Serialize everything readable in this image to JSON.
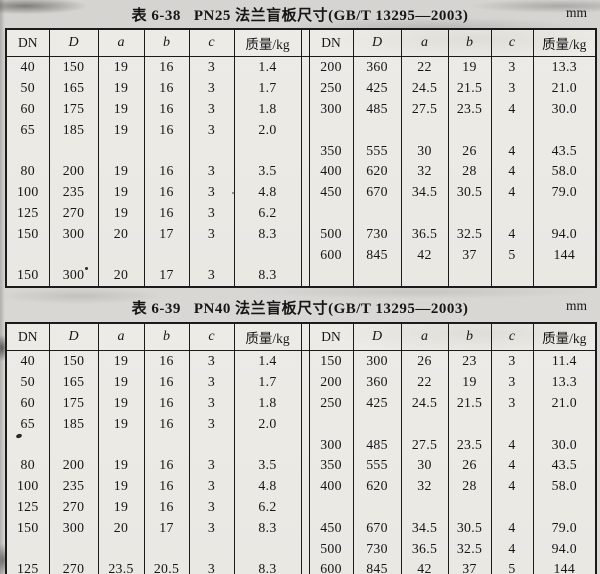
{
  "tables": [
    {
      "title_prefix": "表 6-38",
      "title": "PN25 法兰盲板尺寸(GB/T 13295—2003)",
      "unit": "mm",
      "columns": [
        "DN",
        "D",
        "a",
        "b",
        "c",
        "质量/kg",
        "DN",
        "D",
        "a",
        "b",
        "c",
        "质量/kg"
      ],
      "rows": [
        [
          "40",
          "150",
          "19",
          "16",
          "3",
          "1.4",
          "200",
          "360",
          "22",
          "19",
          "3",
          "13.3"
        ],
        [
          "50",
          "165",
          "19",
          "16",
          "3",
          "1.7",
          "250",
          "425",
          "24.5",
          "21.5",
          "3",
          "21.0"
        ],
        [
          "60",
          "175",
          "19",
          "16",
          "3",
          "1.8",
          "300",
          "485",
          "27.5",
          "23.5",
          "4",
          "30.0"
        ],
        [
          "65",
          "185",
          "19",
          "16",
          "3",
          "2.0",
          "",
          "",
          "",
          "",
          "",
          ""
        ],
        [
          "",
          "",
          "",
          "",
          "",
          "",
          "350",
          "555",
          "30",
          "26",
          "4",
          "43.5"
        ],
        [
          "80",
          "200",
          "19",
          "16",
          "3",
          "3.5",
          "400",
          "620",
          "32",
          "28",
          "4",
          "58.0"
        ],
        [
          "100",
          "235",
          "19",
          "16",
          "3",
          "4.8",
          "450",
          "670",
          "34.5",
          "30.5",
          "4",
          "79.0"
        ],
        [
          "125",
          "270",
          "19",
          "16",
          "3",
          "6.2",
          "",
          "",
          "",
          "",
          "",
          ""
        ],
        [
          "150",
          "300",
          "20",
          "17",
          "3",
          "8.3",
          "500",
          "730",
          "36.5",
          "32.5",
          "4",
          "94.0"
        ],
        [
          "",
          "",
          "",
          "",
          "",
          "",
          "600",
          "845",
          "42",
          "37",
          "5",
          "144"
        ],
        [
          "150",
          "300",
          "20",
          "17",
          "3",
          "8.3",
          "",
          "",
          "",
          "",
          "",
          ""
        ]
      ]
    },
    {
      "title_prefix": "表 6-39",
      "title": "PN40 法兰盲板尺寸(GB/T 13295—2003)",
      "unit": "mm",
      "columns": [
        "DN",
        "D",
        "a",
        "b",
        "c",
        "质量/kg",
        "DN",
        "D",
        "a",
        "b",
        "c",
        "质量/kg"
      ],
      "rows": [
        [
          "40",
          "150",
          "19",
          "16",
          "3",
          "1.4",
          "150",
          "300",
          "26",
          "23",
          "3",
          "11.4"
        ],
        [
          "50",
          "165",
          "19",
          "16",
          "3",
          "1.7",
          "200",
          "360",
          "22",
          "19",
          "3",
          "13.3"
        ],
        [
          "60",
          "175",
          "19",
          "16",
          "3",
          "1.8",
          "250",
          "425",
          "24.5",
          "21.5",
          "3",
          "21.0"
        ],
        [
          "65",
          "185",
          "19",
          "16",
          "3",
          "2.0",
          "",
          "",
          "",
          "",
          "",
          ""
        ],
        [
          "",
          "",
          "",
          "",
          "",
          "",
          "300",
          "485",
          "27.5",
          "23.5",
          "4",
          "30.0"
        ],
        [
          "80",
          "200",
          "19",
          "16",
          "3",
          "3.5",
          "350",
          "555",
          "30",
          "26",
          "4",
          "43.5"
        ],
        [
          "100",
          "235",
          "19",
          "16",
          "3",
          "4.8",
          "400",
          "620",
          "32",
          "28",
          "4",
          "58.0"
        ],
        [
          "125",
          "270",
          "19",
          "16",
          "3",
          "6.2",
          "",
          "",
          "",
          "",
          "",
          ""
        ],
        [
          "150",
          "300",
          "20",
          "17",
          "3",
          "8.3",
          "450",
          "670",
          "34.5",
          "30.5",
          "4",
          "79.0"
        ],
        [
          "",
          "",
          "",
          "",
          "",
          "",
          "500",
          "730",
          "36.5",
          "32.5",
          "4",
          "94.0"
        ],
        [
          "125",
          "270",
          "23.5",
          "20.5",
          "3",
          "8.3",
          "600",
          "845",
          "42",
          "37",
          "5",
          "144"
        ]
      ]
    }
  ]
}
